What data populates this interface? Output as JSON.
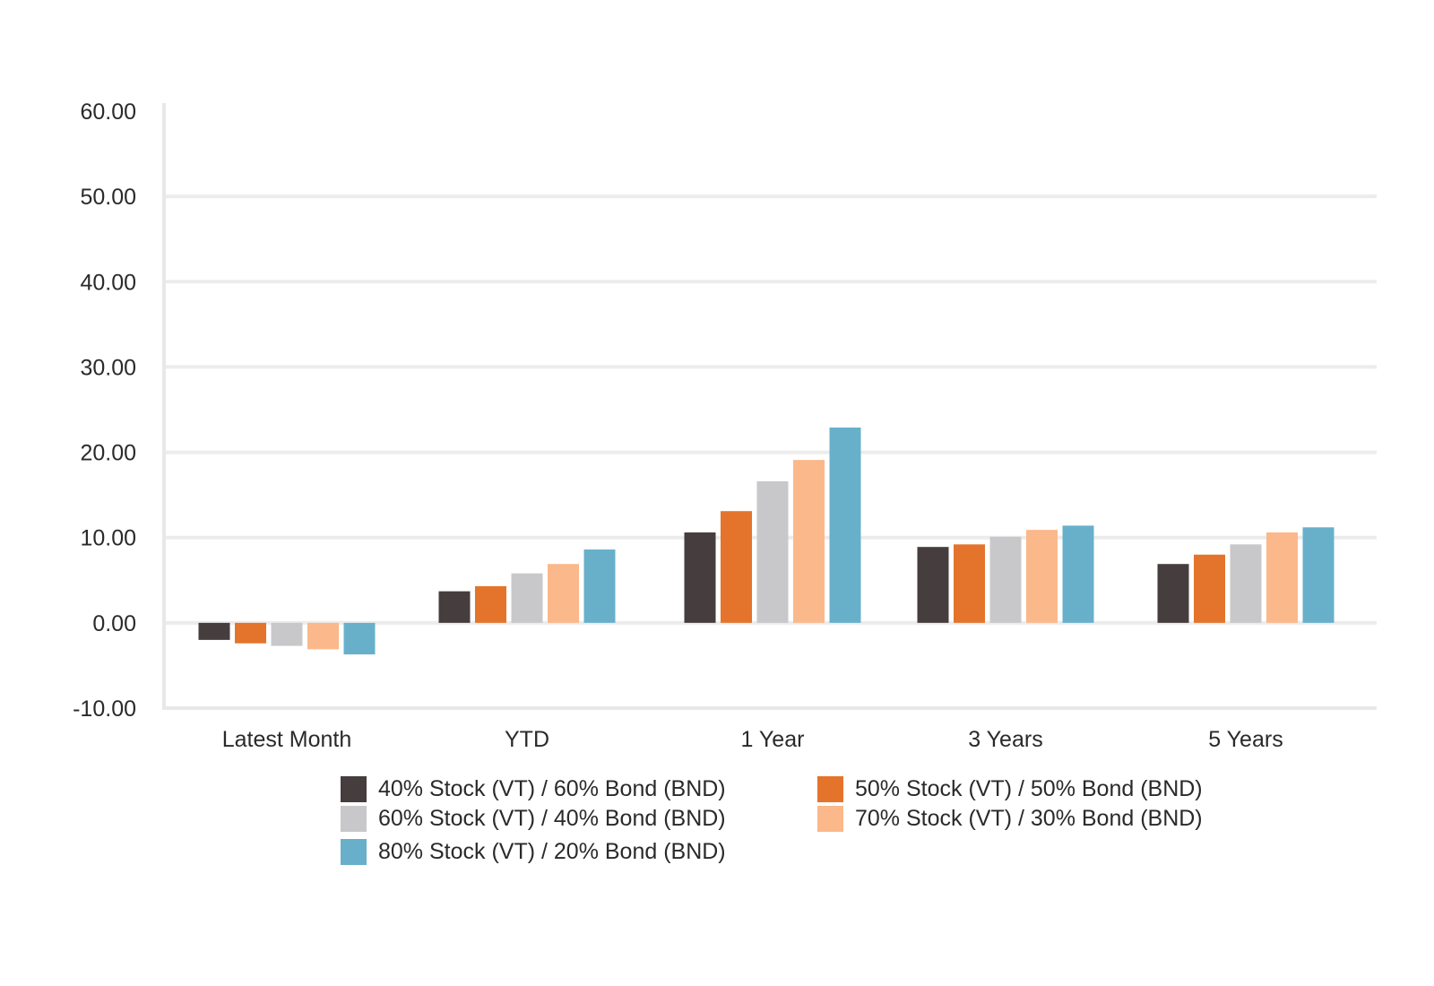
{
  "chart_data": {
    "type": "bar",
    "categories": [
      "Latest Month",
      "YTD",
      "1 Year",
      "3 Years",
      "5 Years"
    ],
    "ylim": [
      -10,
      60
    ],
    "y_ticks": [
      "60.00",
      "50.00",
      "40.00",
      "30.00",
      "20.00",
      "10.00",
      "0.00",
      "-10.00"
    ],
    "y_tick_values": [
      60,
      50,
      40,
      30,
      20,
      10,
      0,
      -10
    ],
    "grid": true,
    "legend_position": "bottom",
    "series": [
      {
        "name": "40% Stock (VT) / 60% Bond (BND)",
        "color": "#463d3e",
        "values": [
          -2.0,
          3.7,
          10.6,
          8.9,
          6.9
        ]
      },
      {
        "name": "50% Stock (VT) / 50% Bond (BND)",
        "color": "#e4742c",
        "values": [
          -2.4,
          4.3,
          13.1,
          9.2,
          8.0
        ]
      },
      {
        "name": "60% Stock (VT) / 40% Bond (BND)",
        "color": "#c8c8ca",
        "values": [
          -2.7,
          5.8,
          16.6,
          10.1,
          9.2
        ]
      },
      {
        "name": "70% Stock (VT) / 30% Bond (BND)",
        "color": "#fbb88a",
        "values": [
          -3.1,
          6.9,
          19.1,
          10.9,
          10.6
        ]
      },
      {
        "name": "80% Stock (VT) / 20% Bond (BND)",
        "color": "#68b0ca",
        "values": [
          -3.7,
          8.6,
          22.9,
          11.4,
          11.2
        ]
      }
    ]
  }
}
